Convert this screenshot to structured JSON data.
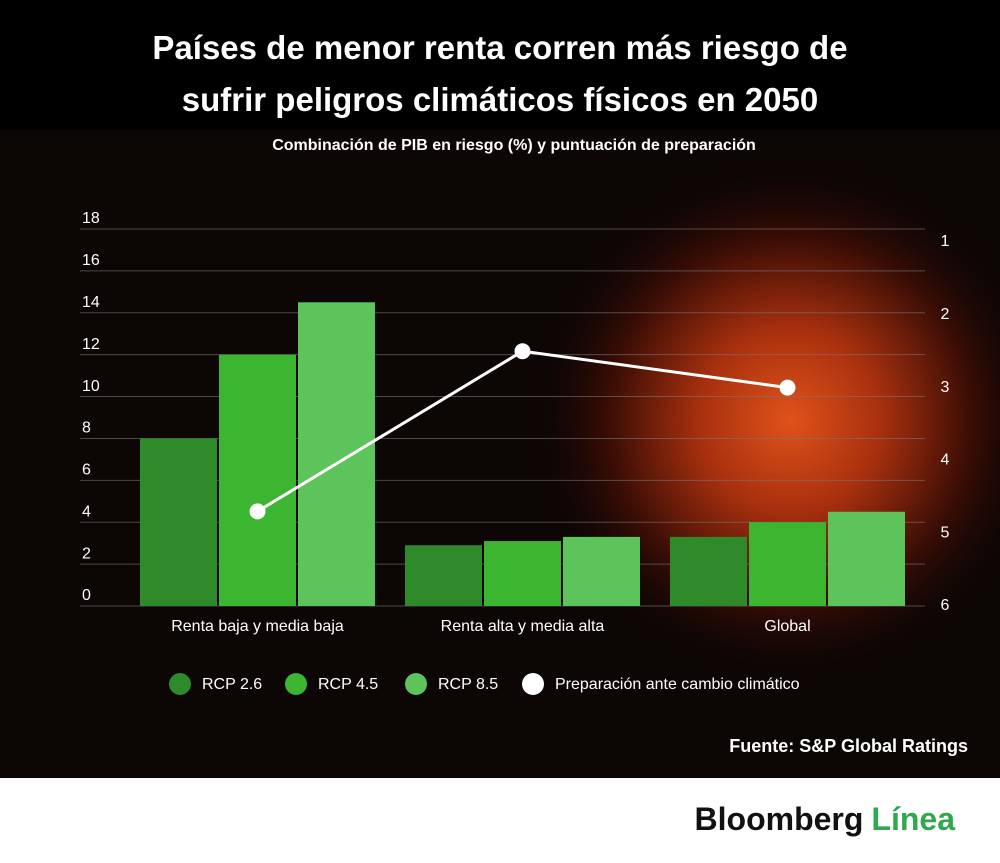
{
  "chart_data": {
    "type": "bar",
    "title": "Países de menor renta corren más riesgo de sufrir peligros climáticos físicos en 2050",
    "subtitle": "Combinación de PIB en riesgo (%) y puntuación de preparación",
    "categories": [
      "Renta baja y media baja",
      "Renta alta y media alta",
      "Global"
    ],
    "series": [
      {
        "name": "RCP 2.6",
        "color": "#2f8a2a",
        "values": [
          8,
          2.9,
          3.3
        ]
      },
      {
        "name": "RCP 4.5",
        "color": "#3cb531",
        "values": [
          12,
          3.1,
          4
        ]
      },
      {
        "name": "RCP 8.5",
        "color": "#5cc45a",
        "values": [
          14.5,
          3.3,
          4.5
        ]
      },
      {
        "name": "Preparación ante cambio climático",
        "type": "line",
        "axis": "y2",
        "color": "#ffffff",
        "values": [
          4.7,
          2.5,
          3
        ]
      }
    ],
    "ylim": [
      0,
      18
    ],
    "yticks": [
      0,
      2,
      4,
      6,
      8,
      10,
      12,
      14,
      16,
      18
    ],
    "y2lim": [
      6,
      1
    ],
    "y2ticks": [
      1,
      2,
      3,
      4,
      5,
      6
    ],
    "grid": true,
    "legend": "bottom",
    "source": "Fuente: S&P Global Ratings"
  },
  "logo": {
    "name": "Bloomberg",
    "sub": "Línea"
  }
}
